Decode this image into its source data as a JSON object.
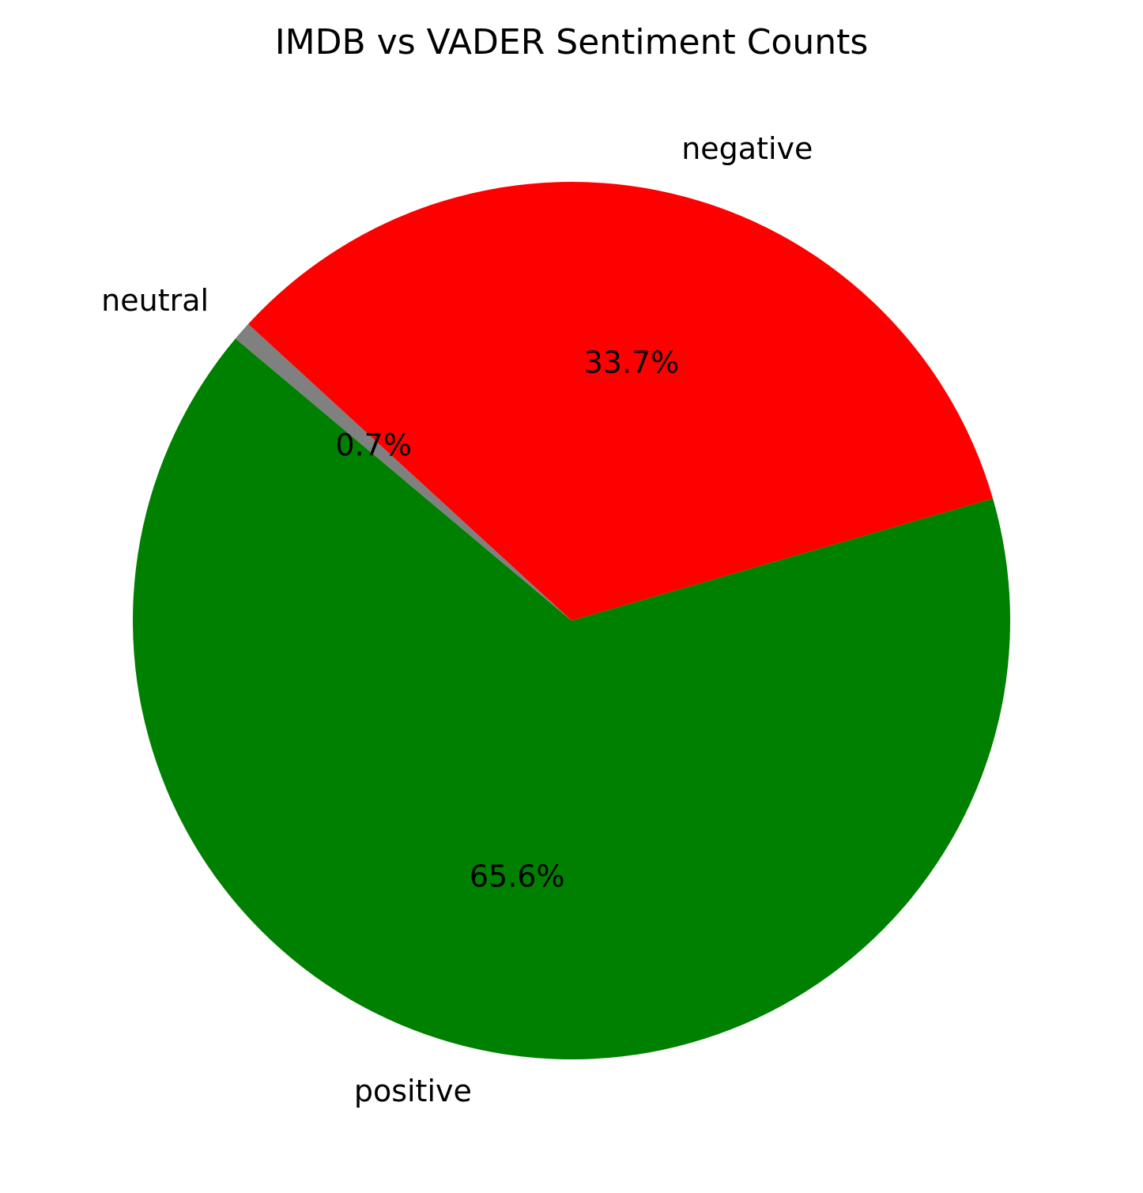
{
  "chart_data": {
    "type": "pie",
    "title": "IMDB vs VADER Sentiment Counts",
    "categories": [
      "positive",
      "negative",
      "neutral"
    ],
    "values": [
      65.6,
      33.7,
      0.7
    ],
    "labels": [
      "65.6%",
      "33.7%",
      "0.7%"
    ],
    "colors": [
      "#008000",
      "#ff0000",
      "#808080"
    ],
    "start_angle_deg": 140,
    "direction": "counterclockwise"
  }
}
